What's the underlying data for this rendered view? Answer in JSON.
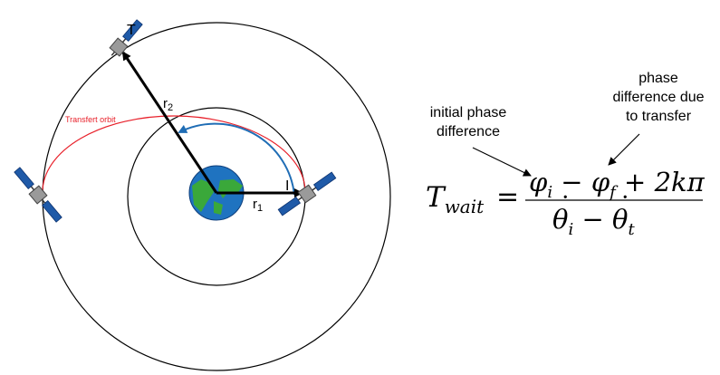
{
  "labels": {
    "target": "T",
    "interceptor": "I",
    "r1_base": "r",
    "r1_sub": "1",
    "r2_base": "r",
    "r2_sub": "2",
    "transfer_orbit": "Transfert orbit"
  },
  "annotations": {
    "initial_phase": [
      "initial phase",
      "difference"
    ],
    "transfer_phase": [
      "phase",
      "difference due",
      "to transfer"
    ]
  },
  "equation": {
    "lhs_base": "T",
    "lhs_sub": "wait",
    "equals": "=",
    "num_phi": "φ",
    "num_i": "i",
    "num_minus": "−",
    "num_f": "f",
    "num_plus": "+",
    "num_tail": "2kπ",
    "den_theta": "θ",
    "den_i": "i",
    "den_minus": "−",
    "den_t": "t"
  },
  "colors": {
    "transfer_orbit": "#e8202a",
    "phase_arc": "#1f6db5",
    "earth_ocean": "#1f73c0",
    "earth_land": "#3aa83a",
    "solar_panel": "#1f5aa8",
    "satellite_body": "#9a9a9a"
  }
}
